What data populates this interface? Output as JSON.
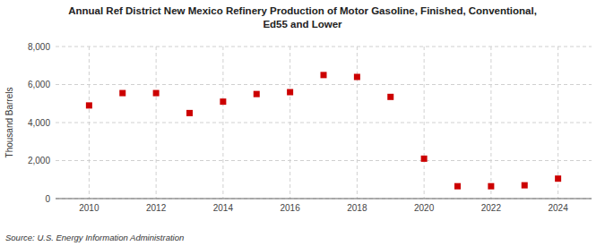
{
  "chart_data": {
    "type": "scatter",
    "title": "Annual Ref District New Mexico Refinery Production of Motor Gasoline, Finished, Conventional,\nEd55 and Lower",
    "y_label": "Thousand Barrels",
    "source": "Source: U.S. Energy Information Administration",
    "x": [
      2010,
      2011,
      2012,
      2013,
      2014,
      2015,
      2016,
      2017,
      2018,
      2019,
      2020,
      2021,
      2022,
      2023,
      2024
    ],
    "values": [
      4900,
      5550,
      5550,
      4500,
      5100,
      5500,
      5600,
      6500,
      6400,
      5350,
      2100,
      650,
      650,
      700,
      1050
    ],
    "color": "#cc0000",
    "marker": "square",
    "xlim": [
      2009,
      2025
    ],
    "xticks": [
      2010,
      2012,
      2014,
      2016,
      2018,
      2020,
      2022,
      2024
    ],
    "ylim": [
      0,
      8000
    ],
    "yticks": [
      0,
      {
        "value": 2000,
        "label": "2,000"
      },
      {
        "value": 4000,
        "label": "4,000"
      },
      {
        "value": 6000,
        "label": "6,000"
      },
      {
        "value": 8000,
        "label": "8,000"
      }
    ],
    "grid": true
  }
}
